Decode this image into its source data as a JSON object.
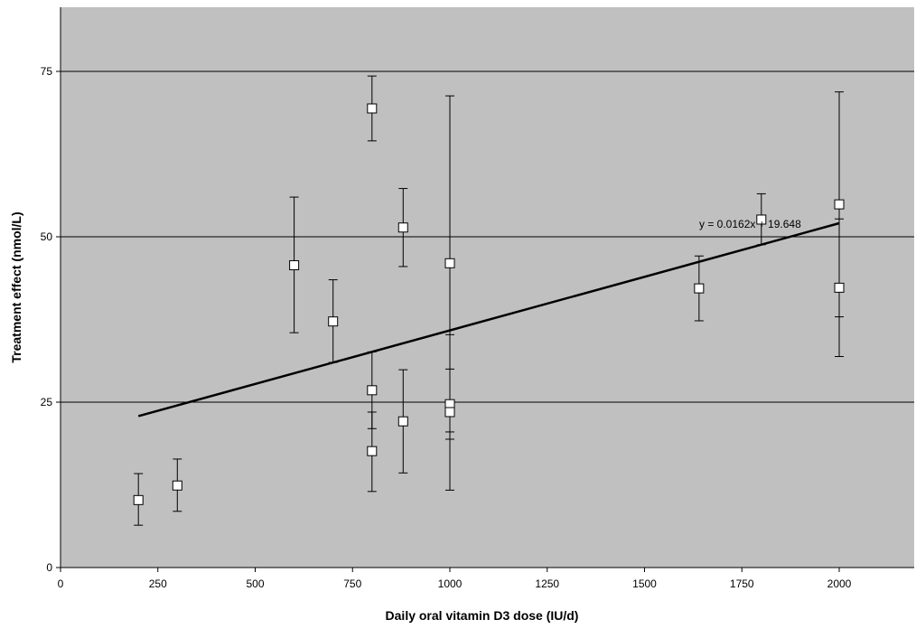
{
  "chart_data": {
    "type": "scatter",
    "title": "",
    "xlabel": "Daily oral vitamin D3 dose (IU/d)",
    "ylabel": "Treatment effect (nmol/L)",
    "xlim": [
      0,
      2200
    ],
    "ylim": [
      0,
      85
    ],
    "x_ticks": [
      0,
      250,
      500,
      750,
      1000,
      1250,
      1500,
      1750,
      2000
    ],
    "y_ticks": [
      0,
      25,
      50,
      75
    ],
    "grid": "horizontal",
    "background": "#c0c0c0",
    "marker": "open-square",
    "points": [
      {
        "x": 200,
        "y": 10.2,
        "low": 6.4,
        "high": 14.2
      },
      {
        "x": 300,
        "y": 12.4,
        "low": 8.5,
        "high": 16.4
      },
      {
        "x": 600,
        "y": 45.7,
        "low": 35.5,
        "high": 56.0
      },
      {
        "x": 700,
        "y": 37.2,
        "low": 31.0,
        "high": 43.5
      },
      {
        "x": 800,
        "y": 69.4,
        "low": 64.5,
        "high": 74.3
      },
      {
        "x": 800,
        "y": 26.8,
        "low": 21.0,
        "high": 32.6
      },
      {
        "x": 800,
        "y": 17.6,
        "low": 11.5,
        "high": 23.5
      },
      {
        "x": 880,
        "y": 51.4,
        "low": 45.5,
        "high": 57.3
      },
      {
        "x": 880,
        "y": 22.1,
        "low": 14.3,
        "high": 29.9
      },
      {
        "x": 1000,
        "y": 46.0,
        "low": 20.5,
        "high": 71.3
      },
      {
        "x": 1000,
        "y": 24.7,
        "low": 19.4,
        "high": 30.0
      },
      {
        "x": 1000,
        "y": 23.5,
        "low": 11.7,
        "high": 35.2
      },
      {
        "x": 1640,
        "y": 42.2,
        "low": 37.3,
        "high": 47.1
      },
      {
        "x": 1800,
        "y": 52.6,
        "low": 48.8,
        "high": 56.5
      },
      {
        "x": 2000,
        "y": 54.9,
        "low": 37.9,
        "high": 71.9
      },
      {
        "x": 2000,
        "y": 42.3,
        "low": 31.9,
        "high": 52.7
      }
    ],
    "trendline": {
      "x_range": [
        200,
        2000
      ],
      "slope": 0.0162,
      "intercept": 19.648,
      "equation": "y = 0.0162x + 19.648"
    }
  }
}
